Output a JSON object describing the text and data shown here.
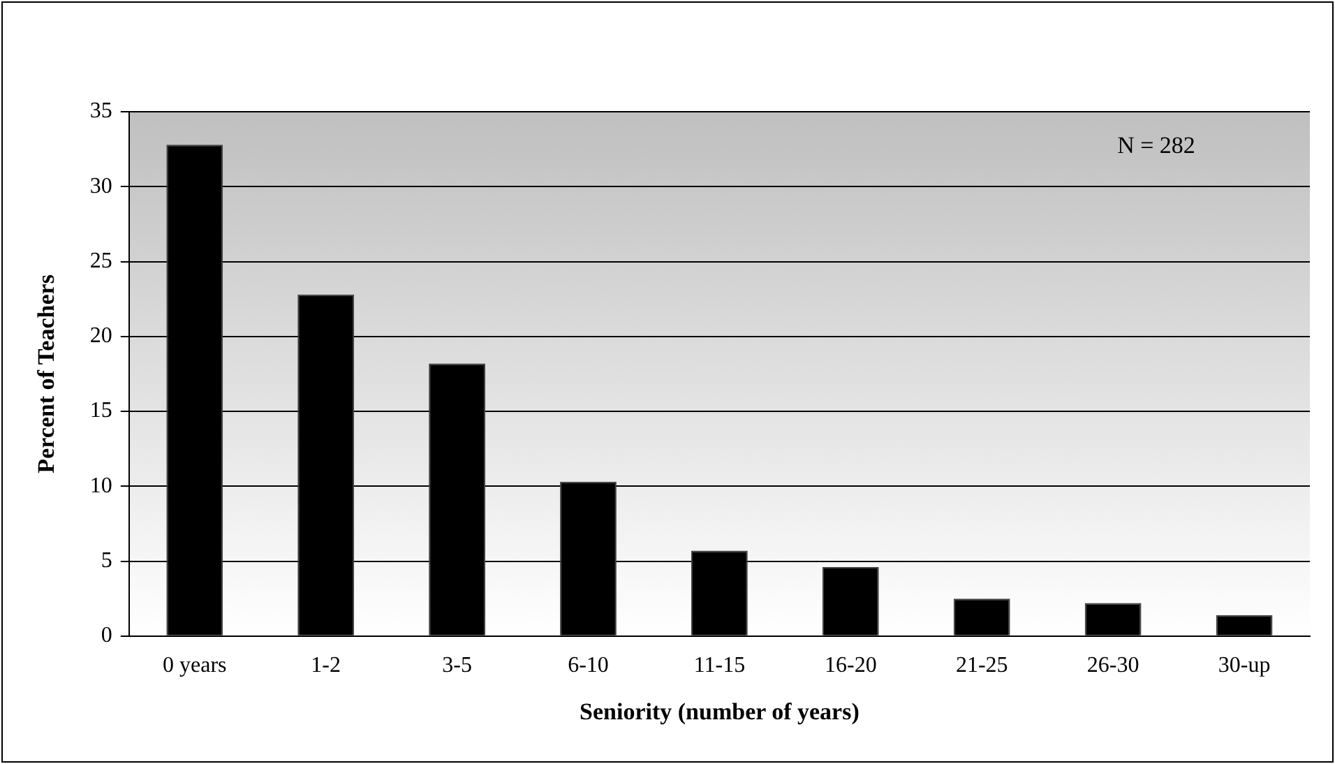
{
  "chart_data": {
    "type": "bar",
    "xlabel": "Seniority (number of years)",
    "ylabel": "Percent of Teachers",
    "categories": [
      "0 years",
      "1-2",
      "3-5",
      "6-10",
      "11-15",
      "16-20",
      "21-25",
      "26-30",
      "30-up"
    ],
    "values": [
      32.8,
      22.8,
      18.2,
      10.3,
      5.7,
      4.6,
      2.5,
      2.2,
      1.4
    ],
    "color": "#000000",
    "ylim": [
      0,
      35
    ],
    "yticks": [
      0,
      5,
      10,
      15,
      20,
      25,
      30,
      35
    ],
    "grid": "y",
    "legend": false,
    "annotations": [
      "N = 282"
    ]
  }
}
